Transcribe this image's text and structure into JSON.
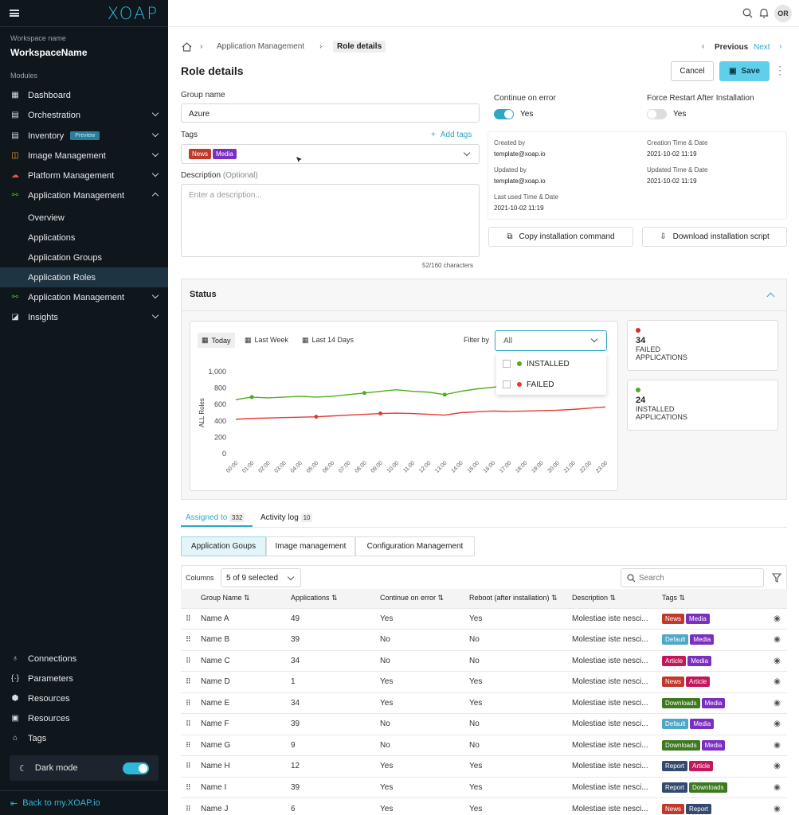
{
  "brand": "XOAP",
  "workspace": {
    "label": "Workspace name",
    "name": "WorkspaceName"
  },
  "modules_label": "Modules",
  "nav": {
    "dashboard": "Dashboard",
    "orchestration": "Orchestration",
    "inventory": "Inventory",
    "inventory_badge": "Preview",
    "image_management": "Image Management",
    "platform_management": "Platform Management",
    "application_management": "Application Management",
    "overview": "Overview",
    "applications": "Applications",
    "application_groups": "Application Groups",
    "application_roles": "Application Roles",
    "application_management_2": "Application Management",
    "insights": "Insights",
    "connections": "Connections",
    "parameters": "Parameters",
    "resources": "Resources",
    "resources_2": "Resources",
    "tags": "Tags"
  },
  "dark_mode": "Dark mode",
  "back_link": "Back to my.XOAP.io",
  "user_initials": "OR",
  "breadcrumb": {
    "item1": "Application Management",
    "current": "Role details"
  },
  "pager": {
    "previous": "Previous",
    "next": "Next"
  },
  "page_title": "Role details",
  "actions": {
    "cancel": "Cancel",
    "save": "Save"
  },
  "form": {
    "group_name_label": "Group name",
    "group_name_value": "Azure",
    "tags_label": "Tags",
    "add_tags": "Add tags",
    "tags": [
      "News",
      "Media"
    ],
    "description_label": "Description",
    "description_optional": "(Optional)",
    "description_placeholder": "Enter a description...",
    "char_count": "52/160 characters"
  },
  "options": {
    "continue_on_error_label": "Continue on error",
    "continue_on_error_value": "Yes",
    "force_restart_label": "Force Restart After Installation",
    "force_restart_value": "Yes"
  },
  "meta": {
    "created_by_label": "Created by",
    "created_by": "template@xoap.io",
    "creation_label": "Creation Time & Date",
    "creation": "2021-10-02 11:19",
    "updated_by_label": "Updated by",
    "updated_by": "template@xoap.io",
    "updated_label": "Updated Time & Date",
    "updated": "2021-10-02 11:19",
    "last_used_label": "Last used Time & Date",
    "last_used": "2021-10-02 11:19"
  },
  "buttons": {
    "copy_cmd": "Copy installation command",
    "download_script": "Download installation script"
  },
  "status": {
    "title": "Status",
    "ranges": [
      "Today",
      "Last Week",
      "Last 14 Days"
    ],
    "filter_label": "Filter by",
    "filter_value": "All",
    "filter_options": [
      {
        "label": "INSTALLED",
        "color": "#4caf1a"
      },
      {
        "label": "FAILED",
        "color": "#e53935"
      }
    ],
    "failed": {
      "count": "34",
      "label1": "FAILED",
      "label2": "APPLICATIONS",
      "color": "#d32f2f"
    },
    "installed": {
      "count": "24",
      "label1": "INSTALLED",
      "label2": "APPLICATIONS",
      "color": "#4caf1a"
    }
  },
  "chart_data": {
    "type": "line",
    "ylabel": "ALL Roles",
    "ylim": [
      0,
      1000
    ],
    "yticks": [
      "1,000",
      "800",
      "600",
      "400",
      "200",
      "0"
    ],
    "categories": [
      "00:00",
      "01:00",
      "02:00",
      "03:00",
      "04:00",
      "05:00",
      "06:00",
      "07:00",
      "08:00",
      "09:00",
      "10:00",
      "11:00",
      "12:00",
      "13:00",
      "14:00",
      "15:00",
      "16:00",
      "17:00",
      "18:00",
      "19:00",
      "20:00",
      "21:00",
      "22:00",
      "23:00"
    ],
    "series": [
      {
        "color": "#4caf1a",
        "values": [
          660,
          690,
          680,
          690,
          700,
          690,
          700,
          720,
          740,
          760,
          780,
          760,
          750,
          720,
          760,
          790,
          810,
          830,
          840,
          850,
          860,
          880,
          900,
          910
        ]
      },
      {
        "color": "#e53935",
        "values": [
          420,
          430,
          435,
          440,
          445,
          450,
          460,
          470,
          480,
          490,
          495,
          490,
          480,
          470,
          500,
          510,
          520,
          515,
          520,
          525,
          530,
          540,
          555,
          570
        ]
      }
    ]
  },
  "tabs": {
    "assigned": "Assigned to",
    "assigned_count": "332",
    "activity": "Activity log",
    "activity_count": "10"
  },
  "subtabs": [
    "Application Goups",
    "Image management",
    "Configuration Management"
  ],
  "table_tools": {
    "columns_label": "Columns",
    "columns_value": "5 of 9 selected",
    "search_placeholder": "Search"
  },
  "columns": [
    "Group Name ⇅",
    "Applications ⇅",
    "Continue on error ⇅",
    "Reboot (after installation) ⇅",
    "Description ⇅",
    "Tags ⇅"
  ],
  "rows": [
    {
      "name": "Name A",
      "apps": "49",
      "coe": "Yes",
      "reboot": "Yes",
      "desc": "Molestiae iste nesci...",
      "tags": [
        [
          "News",
          "t-news"
        ],
        [
          "Media",
          "t-media"
        ]
      ]
    },
    {
      "name": "Name B",
      "apps": "39",
      "coe": "No",
      "reboot": "No",
      "desc": "Molestiae iste nesci...",
      "tags": [
        [
          "Default",
          "t-default"
        ],
        [
          "Media",
          "t-media"
        ]
      ]
    },
    {
      "name": "Name C",
      "apps": "34",
      "coe": "No",
      "reboot": "No",
      "desc": "Molestiae iste nesci...",
      "tags": [
        [
          "Article",
          "t-article"
        ],
        [
          "Media",
          "t-media"
        ]
      ]
    },
    {
      "name": "Name D",
      "apps": "1",
      "coe": "Yes",
      "reboot": "Yes",
      "desc": "Molestiae iste nesci...",
      "tags": [
        [
          "News",
          "t-news"
        ],
        [
          "Article",
          "t-article"
        ]
      ]
    },
    {
      "name": "Name E",
      "apps": "34",
      "coe": "Yes",
      "reboot": "Yes",
      "desc": "Molestiae iste nesci...",
      "tags": [
        [
          "Downloads",
          "t-downloads"
        ],
        [
          "Media",
          "t-media"
        ]
      ]
    },
    {
      "name": "Name F",
      "apps": "39",
      "coe": "No",
      "reboot": "No",
      "desc": "Molestiae iste nesci...",
      "tags": [
        [
          "Default",
          "t-default"
        ],
        [
          "Media",
          "t-media"
        ]
      ]
    },
    {
      "name": "Name G",
      "apps": "9",
      "coe": "No",
      "reboot": "No",
      "desc": "Molestiae iste nesci...",
      "tags": [
        [
          "Downloads",
          "t-downloads"
        ],
        [
          "Media",
          "t-media"
        ]
      ]
    },
    {
      "name": "Name H",
      "apps": "12",
      "coe": "Yes",
      "reboot": "Yes",
      "desc": "Molestiae iste nesci...",
      "tags": [
        [
          "Report",
          "t-report"
        ],
        [
          "Article",
          "t-article"
        ]
      ]
    },
    {
      "name": "Name I",
      "apps": "39",
      "coe": "Yes",
      "reboot": "Yes",
      "desc": "Molestiae iste nesci...",
      "tags": [
        [
          "Report",
          "t-report"
        ],
        [
          "Downloads",
          "t-downloads"
        ]
      ]
    },
    {
      "name": "Name J",
      "apps": "6",
      "coe": "Yes",
      "reboot": "Yes",
      "desc": "Molestiae iste nesci...",
      "tags": [
        [
          "News",
          "t-news"
        ],
        [
          "Report",
          "t-report"
        ]
      ]
    }
  ]
}
